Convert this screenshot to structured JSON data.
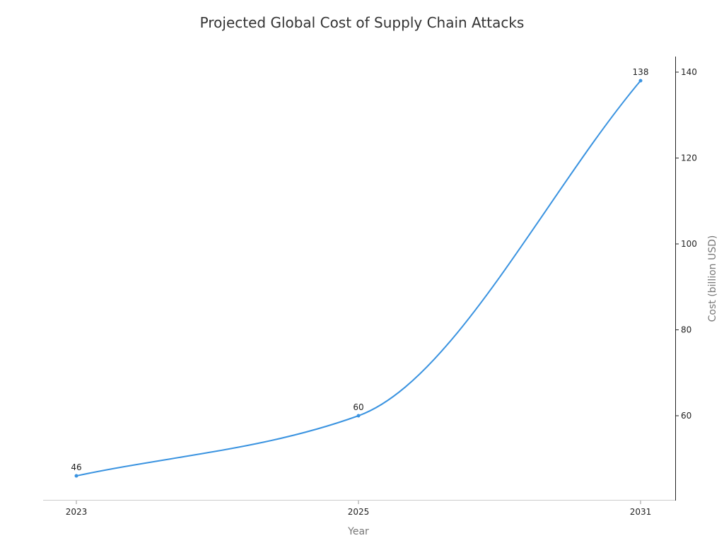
{
  "chart_data": {
    "type": "line",
    "title": "Projected Global Cost of Supply Chain Attacks",
    "xlabel": "Year",
    "ylabel": "Cost (billion USD)",
    "categories": [
      "2023",
      "2025",
      "2031"
    ],
    "series": [
      {
        "name": "Cost (billion USD)",
        "values": [
          46,
          60,
          138
        ],
        "color": "#3a93e0"
      }
    ],
    "data_labels": [
      "46",
      "60",
      "138"
    ],
    "y_ticks": [
      60,
      80,
      100,
      120,
      140
    ],
    "ylim": [
      40.4,
      143.5
    ],
    "y_axis_position": "right",
    "grid": false,
    "legend": "none",
    "smooth": true
  }
}
